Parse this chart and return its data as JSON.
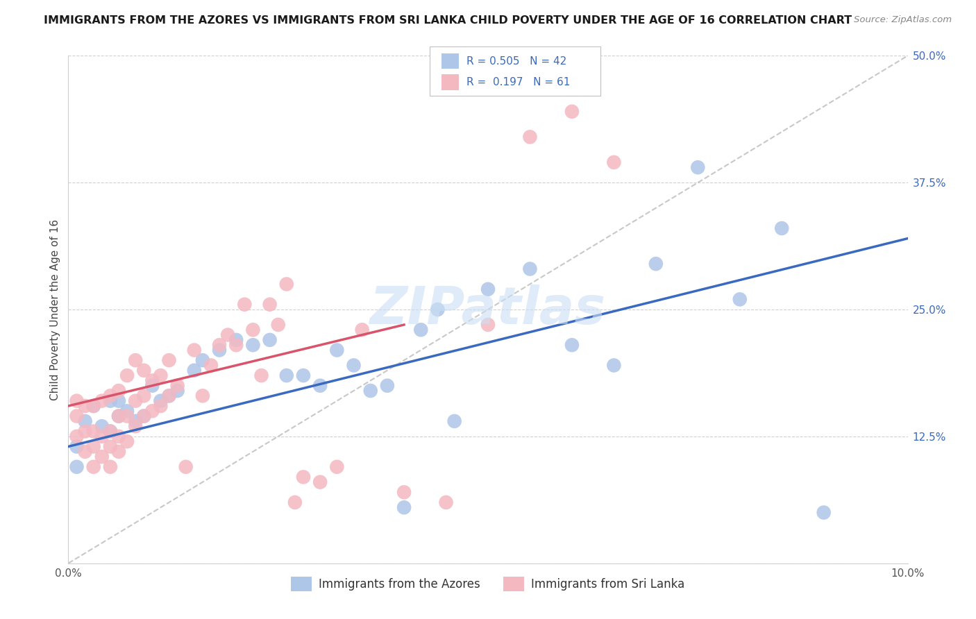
{
  "title": "IMMIGRANTS FROM THE AZORES VS IMMIGRANTS FROM SRI LANKA CHILD POVERTY UNDER THE AGE OF 16 CORRELATION CHART",
  "source": "Source: ZipAtlas.com",
  "ylabel": "Child Poverty Under the Age of 16",
  "x_min": 0.0,
  "x_max": 0.1,
  "y_min": 0.0,
  "y_max": 0.5,
  "y_ticks": [
    0.0,
    0.125,
    0.25,
    0.375,
    0.5
  ],
  "y_tick_labels": [
    "",
    "12.5%",
    "25.0%",
    "37.5%",
    "50.0%"
  ],
  "legend_azores": "Immigrants from the Azores",
  "legend_sri_lanka": "Immigrants from Sri Lanka",
  "R_azores": 0.505,
  "N_azores": 42,
  "R_sri_lanka": 0.197,
  "N_sri_lanka": 61,
  "color_azores": "#aec6e8",
  "color_sri_lanka": "#f4b8c1",
  "line_color_azores": "#3a6abf",
  "line_color_sri_lanka": "#d9546a",
  "dashed_line_color": "#c8c8c8",
  "watermark": "ZIPatlas",
  "azores_x": [
    0.001,
    0.001,
    0.002,
    0.003,
    0.004,
    0.005,
    0.005,
    0.006,
    0.006,
    0.007,
    0.008,
    0.009,
    0.01,
    0.011,
    0.012,
    0.013,
    0.015,
    0.016,
    0.018,
    0.02,
    0.022,
    0.024,
    0.026,
    0.028,
    0.03,
    0.032,
    0.034,
    0.036,
    0.038,
    0.04,
    0.042,
    0.044,
    0.046,
    0.05,
    0.055,
    0.06,
    0.065,
    0.07,
    0.075,
    0.08,
    0.085,
    0.09
  ],
  "azores_y": [
    0.095,
    0.115,
    0.14,
    0.155,
    0.135,
    0.13,
    0.16,
    0.145,
    0.16,
    0.15,
    0.14,
    0.145,
    0.175,
    0.16,
    0.165,
    0.17,
    0.19,
    0.2,
    0.21,
    0.22,
    0.215,
    0.22,
    0.185,
    0.185,
    0.175,
    0.21,
    0.195,
    0.17,
    0.175,
    0.055,
    0.23,
    0.25,
    0.14,
    0.27,
    0.29,
    0.215,
    0.195,
    0.295,
    0.39,
    0.26,
    0.33,
    0.05
  ],
  "sri_lanka_x": [
    0.001,
    0.001,
    0.001,
    0.002,
    0.002,
    0.002,
    0.003,
    0.003,
    0.003,
    0.003,
    0.004,
    0.004,
    0.004,
    0.005,
    0.005,
    0.005,
    0.005,
    0.006,
    0.006,
    0.006,
    0.006,
    0.007,
    0.007,
    0.007,
    0.008,
    0.008,
    0.008,
    0.009,
    0.009,
    0.009,
    0.01,
    0.01,
    0.011,
    0.011,
    0.012,
    0.012,
    0.013,
    0.014,
    0.015,
    0.016,
    0.017,
    0.018,
    0.019,
    0.02,
    0.021,
    0.022,
    0.023,
    0.024,
    0.025,
    0.026,
    0.027,
    0.028,
    0.03,
    0.032,
    0.035,
    0.04,
    0.045,
    0.05,
    0.055,
    0.06,
    0.065
  ],
  "sri_lanka_y": [
    0.125,
    0.145,
    0.16,
    0.11,
    0.13,
    0.155,
    0.095,
    0.115,
    0.13,
    0.155,
    0.105,
    0.125,
    0.16,
    0.095,
    0.115,
    0.13,
    0.165,
    0.11,
    0.125,
    0.145,
    0.17,
    0.12,
    0.145,
    0.185,
    0.135,
    0.16,
    0.2,
    0.145,
    0.165,
    0.19,
    0.15,
    0.18,
    0.155,
    0.185,
    0.165,
    0.2,
    0.175,
    0.095,
    0.21,
    0.165,
    0.195,
    0.215,
    0.225,
    0.215,
    0.255,
    0.23,
    0.185,
    0.255,
    0.235,
    0.275,
    0.06,
    0.085,
    0.08,
    0.095,
    0.23,
    0.07,
    0.06,
    0.235,
    0.42,
    0.445,
    0.395
  ],
  "azores_line_x0": 0.0,
  "azores_line_y0": 0.115,
  "azores_line_x1": 0.1,
  "azores_line_y1": 0.32,
  "sri_lanka_line_x0": 0.0,
  "sri_lanka_line_y0": 0.155,
  "sri_lanka_line_x1": 0.04,
  "sri_lanka_line_y1": 0.235
}
